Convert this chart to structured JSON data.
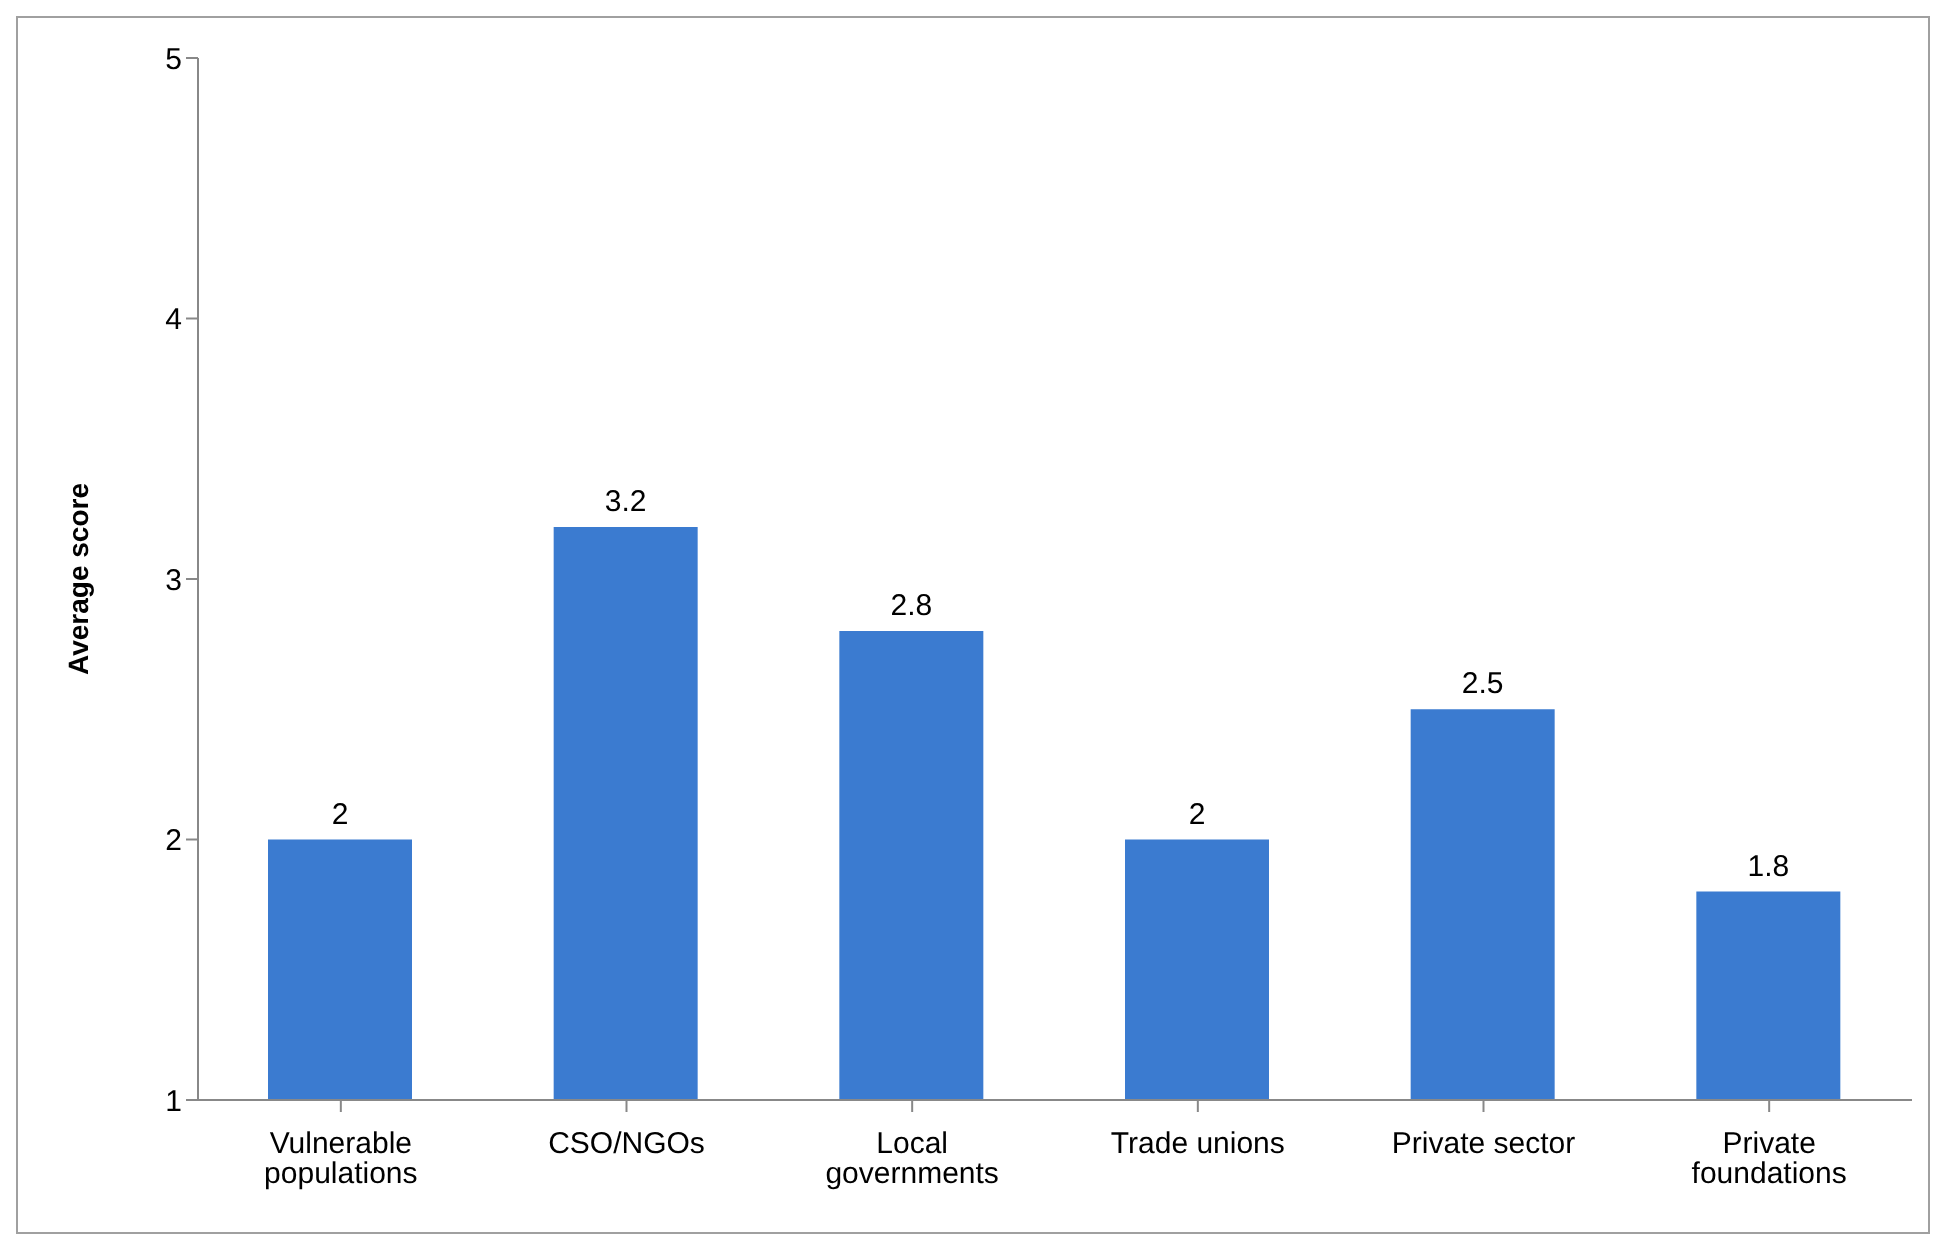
{
  "chart_data": {
    "type": "bar",
    "ylabel": "Average score",
    "categories": [
      "Vulnerable populations",
      "CSO/NGOs",
      "Local governments",
      "Trade unions",
      "Private sector",
      "Private foundations"
    ],
    "values": [
      2,
      3.2,
      2.8,
      2,
      2.5,
      1.8
    ],
    "color": "#3b7bd0",
    "ylim": [
      1,
      5
    ],
    "yticks": [
      1,
      2,
      3,
      4,
      5
    ],
    "grid": false,
    "data_labels": true
  }
}
